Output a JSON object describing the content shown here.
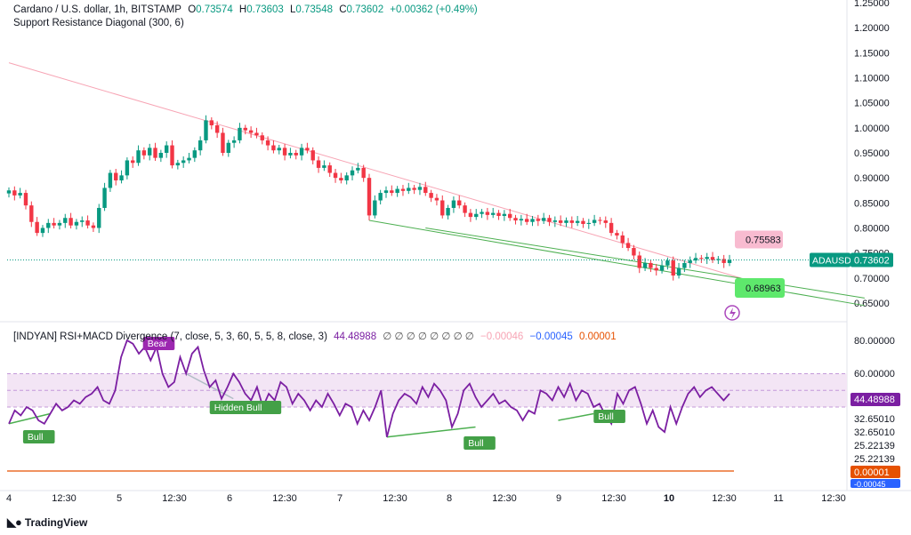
{
  "header": {
    "symbol_title": "Cardano / U.S. dollar, 1h, BITSTAMP",
    "open_label": "O",
    "open": "0.73574",
    "high_label": "H",
    "high": "0.73603",
    "low_label": "L",
    "low": "0.73548",
    "close_label": "C",
    "close": "0.73602",
    "change": "+0.00362 (+0.49%)",
    "indicator": "Support Resistance Diagonal (300, 6)"
  },
  "rsi_header": {
    "name": "[INDYAN] RSI+MACD Divergence (7, close, 5, 3, 60, 5, 5, 8, close, 3)",
    "value": "44.48988",
    "nulls": "∅ ∅ ∅ ∅ ∅ ∅ ∅ ∅",
    "v1": "−0.00046",
    "v2": "−0.00045",
    "v3": "0.00001"
  },
  "chart_data": [
    {
      "type": "candlestick",
      "price_axis_ticks": [
        "1.25000",
        "1.20000",
        "1.15000",
        "1.10000",
        "1.05000",
        "1.00000",
        "0.95000",
        "0.90000",
        "0.85000",
        "0.80000",
        "0.75000",
        "0.70000",
        "0.65000"
      ],
      "x_axis_ticks": [
        "4",
        "12:30",
        "5",
        "12:30",
        "6",
        "12:30",
        "7",
        "12:30",
        "8",
        "12:30",
        "9",
        "12:30",
        "10",
        "12:30",
        "11",
        "12:30"
      ],
      "ylim": [
        0.625,
        1.25
      ],
      "last_price_label": "ADAUSD",
      "last_price": "0.73602",
      "resistance_label": "0.75583",
      "support_label": "0.68963",
      "closes": [
        0.875,
        0.865,
        0.87,
        0.845,
        0.812,
        0.79,
        0.8,
        0.81,
        0.805,
        0.81,
        0.82,
        0.805,
        0.812,
        0.815,
        0.805,
        0.8,
        0.84,
        0.88,
        0.91,
        0.895,
        0.905,
        0.935,
        0.93,
        0.955,
        0.945,
        0.96,
        0.94,
        0.95,
        0.965,
        0.925,
        0.93,
        0.935,
        0.94,
        0.955,
        0.975,
        1.015,
        1.005,
        0.99,
        0.95,
        0.97,
        0.975,
        1.0,
        0.995,
        0.99,
        0.985,
        0.975,
        0.965,
        0.955,
        0.96,
        0.945,
        0.95,
        0.945,
        0.96,
        0.955,
        0.935,
        0.92,
        0.925,
        0.91,
        0.9,
        0.895,
        0.905,
        0.915,
        0.92,
        0.9,
        0.825,
        0.855,
        0.87,
        0.875,
        0.87,
        0.878,
        0.874,
        0.88,
        0.876,
        0.882,
        0.87,
        0.86,
        0.855,
        0.825,
        0.84,
        0.855,
        0.845,
        0.83,
        0.822,
        0.828,
        0.832,
        0.826,
        0.83,
        0.824,
        0.828,
        0.82,
        0.815,
        0.818,
        0.812,
        0.818,
        0.814,
        0.82,
        0.812,
        0.815,
        0.81,
        0.815,
        0.81,
        0.814,
        0.808,
        0.81,
        0.816,
        0.815,
        0.81,
        0.79,
        0.785,
        0.77,
        0.76,
        0.745,
        0.72,
        0.73,
        0.72,
        0.715,
        0.725,
        0.735,
        0.705,
        0.72,
        0.73,
        0.735,
        0.74,
        0.738,
        0.742,
        0.736,
        0.738,
        0.73,
        0.736
      ],
      "resistance_line": [
        [
          0,
          1.13
        ],
        [
          130,
          0.7
        ]
      ],
      "support_lines": [
        [
          [
            64,
            0.815
          ],
          [
            152,
            0.645
          ]
        ],
        [
          [
            74,
            0.8
          ],
          [
            152,
            0.66
          ]
        ]
      ]
    },
    {
      "type": "line",
      "name": "[INDYAN] RSI+MACD Divergence",
      "y_axis_ticks": [
        "80.00000",
        "60.00000",
        "44.48988",
        "32.65010",
        "32.65010",
        "25.22139",
        "25.22139",
        "0.00001",
        "-0.00045"
      ],
      "band": [
        50,
        60
      ],
      "current_value": "44.48988",
      "macd_value_label": "0.00001",
      "macd_value_label_2": "-0.00045",
      "values": [
        30,
        38,
        35,
        40,
        38,
        32,
        30,
        36,
        42,
        38,
        40,
        44,
        42,
        46,
        48,
        52,
        44,
        42,
        50,
        70,
        80,
        78,
        72,
        76,
        68,
        76,
        60,
        52,
        55,
        70,
        60,
        72,
        76,
        62,
        52,
        56,
        45,
        52,
        60,
        55,
        48,
        44,
        52,
        40,
        48,
        44,
        55,
        52,
        42,
        48,
        44,
        38,
        44,
        40,
        48,
        42,
        35,
        42,
        40,
        30,
        38,
        32,
        40,
        50,
        22,
        36,
        44,
        48,
        46,
        42,
        52,
        46,
        54,
        50,
        44,
        28,
        36,
        50,
        54,
        46,
        40,
        44,
        48,
        42,
        44,
        40,
        38,
        32,
        38,
        36,
        50,
        48,
        44,
        52,
        46,
        54,
        44,
        50,
        48,
        40,
        42,
        35,
        30,
        48,
        42,
        50,
        52,
        42,
        30,
        38,
        28,
        25,
        40,
        30,
        40,
        48,
        52,
        46,
        50,
        52,
        48,
        44,
        48
      ],
      "annotations": [
        {
          "label": "Bull",
          "kind": "bull"
        },
        {
          "label": "Bear",
          "kind": "bear"
        },
        {
          "label": "Hidden Bull",
          "kind": "bull"
        },
        {
          "label": "Bull",
          "kind": "bull"
        },
        {
          "label": "Bull",
          "kind": "bull"
        }
      ]
    }
  ],
  "branding": {
    "logo_text": "TradingView"
  },
  "colors": {
    "up": "#089981",
    "down": "#f23645",
    "resistance": "#f7a4b4",
    "support": "#4caf50",
    "rsi_line": "#7b1fa2",
    "band_fill": "#f3e5f5",
    "macd_line": "#e65100",
    "last_price_bg": "#089981"
  }
}
